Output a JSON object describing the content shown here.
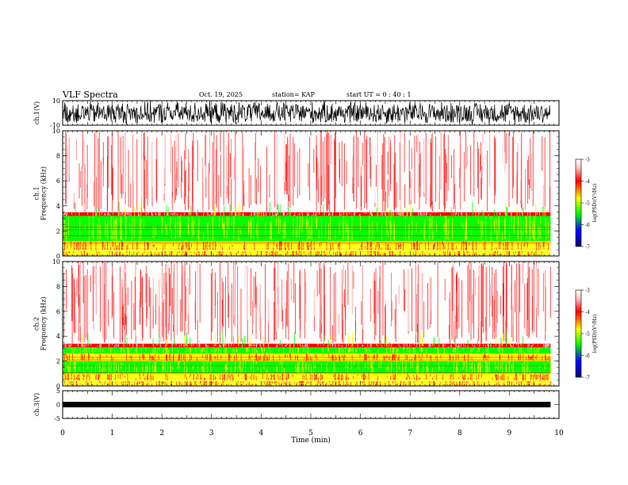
{
  "header": {
    "title": "VLF Spectra",
    "date": "Oct. 19, 2025",
    "station": "station= KAP",
    "start": "start  UT =   0  : 40 : 1"
  },
  "chart_data": [
    {
      "type": "line",
      "name": "ch1-waveform",
      "ylabel": "ch.1(V)",
      "ylim": [
        -10,
        10
      ],
      "yticks": [
        10,
        -10
      ],
      "xlim": [
        0,
        10
      ],
      "series": [
        {
          "name": "ch.1",
          "description_range_V": [
            -10,
            10
          ]
        }
      ]
    },
    {
      "type": "heatmap",
      "name": "ch1-spectrogram",
      "ylabel": "ch.1\nFrequency  (kHz)",
      "ylim": [
        0,
        10
      ],
      "yticks": [
        0,
        2,
        4,
        6,
        8,
        10
      ],
      "xlim": [
        0,
        10
      ],
      "colorbar": {
        "label": "log(PSD)(V²/Hz)",
        "ticks": [
          -3,
          -4,
          -5,
          -6,
          -7
        ],
        "range": [
          -7,
          -3
        ]
      },
      "bands_kHz": [
        {
          "from": 0.0,
          "to": 0.4,
          "level": -4.0
        },
        {
          "from": 0.4,
          "to": 1.2,
          "level": -4.0
        },
        {
          "from": 1.2,
          "to": 3.2,
          "level": -4.8
        },
        {
          "from": 3.2,
          "to": 3.5,
          "level": -3.6
        },
        {
          "from": 3.5,
          "to": 10.0,
          "level": -3.2
        }
      ]
    },
    {
      "type": "heatmap",
      "name": "ch2-spectrogram",
      "ylabel": "ch.2\nFrequency  (kHz)",
      "ylim": [
        0,
        10
      ],
      "yticks": [
        0,
        2,
        4,
        6,
        8,
        10
      ],
      "xlim": [
        0,
        10
      ],
      "colorbar": {
        "label": "log(PSD)(V²/Hz)",
        "ticks": [
          -3,
          -4,
          -5,
          -6,
          -7
        ],
        "range": [
          -7,
          -3
        ]
      },
      "bands_kHz": [
        {
          "from": 0.0,
          "to": 0.4,
          "level": -4.0
        },
        {
          "from": 0.4,
          "to": 1.0,
          "level": -4.2
        },
        {
          "from": 1.0,
          "to": 2.0,
          "level": -5.0
        },
        {
          "from": 2.0,
          "to": 2.6,
          "level": -4.3
        },
        {
          "from": 2.6,
          "to": 3.1,
          "level": -4.9
        },
        {
          "from": 3.1,
          "to": 3.4,
          "level": -3.7
        },
        {
          "from": 3.4,
          "to": 10.0,
          "level": -3.2
        }
      ]
    },
    {
      "type": "line",
      "name": "ch3-waveform",
      "ylabel": "ch.3(V)",
      "ylim": [
        -5,
        5
      ],
      "yticks": [
        5,
        0,
        -5
      ],
      "xlim": [
        0,
        10
      ],
      "series": [
        {
          "name": "ch.3",
          "approx_level_V": 0
        }
      ]
    }
  ],
  "xaxis": {
    "label": "Time  (min)",
    "ticks": [
      0,
      1,
      2,
      3,
      4,
      5,
      6,
      7,
      8,
      9,
      10
    ],
    "range": [
      0,
      10
    ],
    "data_end": 9.83
  },
  "colors": {
    "black": "#000000",
    "red": "#ff0000",
    "yellow": "#ffff00",
    "green": "#00ff00",
    "blue": "#0000ff",
    "navy": "#000080"
  }
}
